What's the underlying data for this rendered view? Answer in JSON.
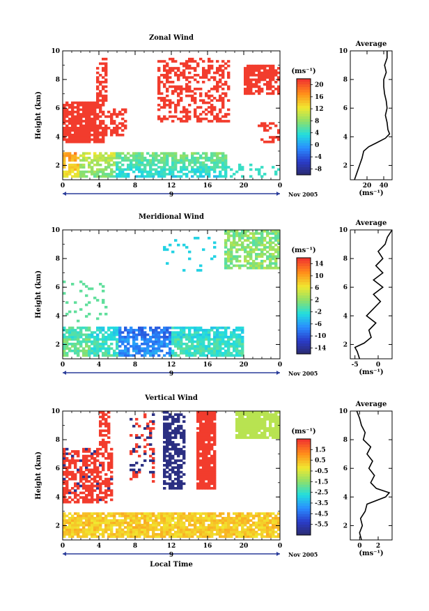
{
  "chart_data": [
    {
      "type": "heatmap",
      "title": "Zonal Wind",
      "ylabel": "Height (km)",
      "xticks": [
        "0",
        "4",
        "8",
        "12",
        "16",
        "20",
        "0"
      ],
      "day_marker": "9",
      "date_label": "Nov 2005",
      "xlim": [
        0,
        24
      ],
      "ylim": [
        1,
        10
      ],
      "yticks": [
        "2",
        "4",
        "6",
        "8",
        "10"
      ],
      "colorbar": {
        "unit": "(ms⁻¹)",
        "ticks": [
          "-8",
          "-4",
          "0",
          "4",
          "8",
          "12",
          "16",
          "20"
        ],
        "range": [
          -10,
          22
        ]
      },
      "average_panel": {
        "title": "Average",
        "xticks": [
          "20",
          "40"
        ],
        "xlabel": "(ms⁻¹)",
        "yticks": [
          "2",
          "4",
          "6",
          "8",
          "10"
        ],
        "xlim": [
          0,
          50
        ],
        "profile": [
          [
            1.0,
            5
          ],
          [
            1.5,
            8
          ],
          [
            2.0,
            11
          ],
          [
            2.5,
            14
          ],
          [
            3.0,
            16
          ],
          [
            3.3,
            22
          ],
          [
            3.6,
            32
          ],
          [
            3.9,
            42
          ],
          [
            4.2,
            47
          ],
          [
            4.5,
            45
          ],
          [
            5.0,
            44
          ],
          [
            5.5,
            42
          ],
          [
            6.0,
            44
          ],
          [
            6.5,
            43
          ],
          [
            7.0,
            41
          ],
          [
            7.5,
            40
          ],
          [
            8.0,
            40
          ],
          [
            8.5,
            43
          ],
          [
            9.0,
            41
          ],
          [
            9.5,
            44
          ],
          [
            10.0,
            44
          ]
        ]
      }
    },
    {
      "type": "heatmap",
      "title": "Meridional Wind",
      "ylabel": "Height (km)",
      "xticks": [
        "0",
        "4",
        "8",
        "12",
        "16",
        "20",
        "0"
      ],
      "day_marker": "9",
      "date_label": "Nov 2005",
      "xlim": [
        0,
        24
      ],
      "ylim": [
        1,
        10
      ],
      "yticks": [
        "2",
        "4",
        "6",
        "8",
        "10"
      ],
      "colorbar": {
        "unit": "(ms⁻¹)",
        "ticks": [
          "-14",
          "-10",
          "-6",
          "-2",
          "2",
          "6",
          "10",
          "14"
        ],
        "range": [
          -16,
          16
        ]
      },
      "average_panel": {
        "title": "Average",
        "xticks": [
          "-5",
          "0"
        ],
        "xlabel": "(ms⁻¹)",
        "yticks": [
          "2",
          "4",
          "6",
          "8",
          "10"
        ],
        "xlim": [
          -6,
          3
        ],
        "profile": [
          [
            1.0,
            -4
          ],
          [
            1.5,
            -4.5
          ],
          [
            1.8,
            -5
          ],
          [
            2.1,
            -3
          ],
          [
            2.5,
            -1.5
          ],
          [
            3.0,
            -2
          ],
          [
            3.5,
            -0.5
          ],
          [
            4.0,
            -2.5
          ],
          [
            4.5,
            -1
          ],
          [
            5.0,
            0.5
          ],
          [
            5.5,
            -1
          ],
          [
            6.0,
            1
          ],
          [
            6.5,
            -1
          ],
          [
            7.0,
            1
          ],
          [
            7.5,
            -0.5
          ],
          [
            8.0,
            1
          ],
          [
            8.5,
            0
          ],
          [
            9.0,
            1.5
          ],
          [
            9.5,
            2
          ],
          [
            10.0,
            3
          ]
        ]
      }
    },
    {
      "type": "heatmap",
      "title": "Vertical Wind",
      "ylabel": "Height (km)",
      "xlabel": "Local Time",
      "xticks": [
        "0",
        "4",
        "8",
        "12",
        "16",
        "20",
        "0"
      ],
      "day_marker": "9",
      "date_label": "Nov 2005",
      "xlim": [
        0,
        24
      ],
      "ylim": [
        1,
        10
      ],
      "yticks": [
        "2",
        "4",
        "6",
        "8",
        "10"
      ],
      "colorbar": {
        "unit": "(ms⁻¹)",
        "ticks": [
          "-5.5",
          "-4.5",
          "-3.5",
          "-2.5",
          "-1.5",
          "-0.5",
          "0.5",
          "1.5"
        ],
        "range": [
          -6.5,
          2.5
        ]
      },
      "average_panel": {
        "title": "Average",
        "xticks": [
          "0",
          "2"
        ],
        "xlabel": "(ms⁻¹)",
        "yticks": [
          "2",
          "4",
          "6",
          "8",
          "10"
        ],
        "xlim": [
          -1,
          3.5
        ],
        "profile": [
          [
            1.0,
            0.2
          ],
          [
            1.5,
            0.0
          ],
          [
            2.0,
            0.3
          ],
          [
            2.5,
            0.1
          ],
          [
            3.0,
            0.6
          ],
          [
            3.5,
            0.8
          ],
          [
            4.0,
            2.8
          ],
          [
            4.3,
            3.2
          ],
          [
            4.6,
            1.8
          ],
          [
            5.0,
            1.2
          ],
          [
            5.5,
            1.6
          ],
          [
            6.0,
            1.0
          ],
          [
            6.5,
            1.4
          ],
          [
            7.0,
            0.8
          ],
          [
            7.5,
            1.2
          ],
          [
            8.0,
            0.4
          ],
          [
            8.5,
            0.6
          ],
          [
            9.0,
            0.2
          ],
          [
            9.5,
            0.0
          ],
          [
            10.0,
            -0.3
          ]
        ]
      }
    }
  ]
}
